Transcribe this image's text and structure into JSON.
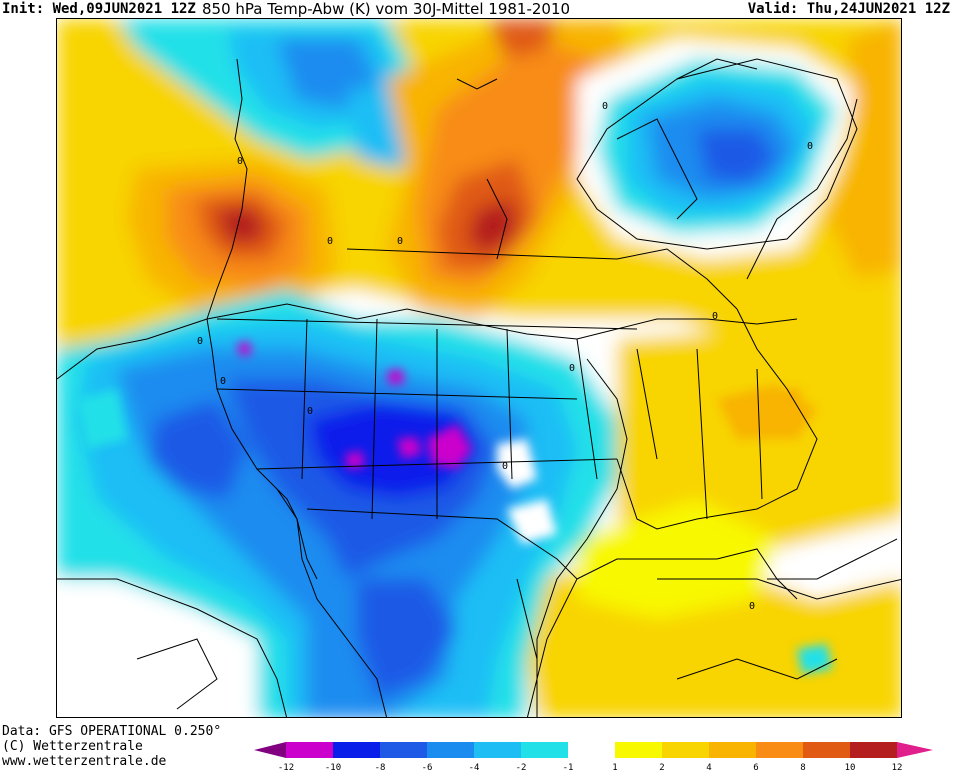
{
  "header": {
    "init": "Init: Wed,09JUN2021 12Z",
    "title": "850 hPa Temp-Abw (K) vom 30J-Mittel 1981-2010",
    "valid": "Valid: Thu,24JUN2021 12Z"
  },
  "footer": {
    "data_source": "Data: GFS OPERATIONAL 0.250°",
    "copyright": "(C) Wetterzentrale",
    "website": "www.wetterzentrale.de"
  },
  "legend": {
    "ticks": [
      "-12",
      "-10",
      "-8",
      "-6",
      "-4",
      "-2",
      "-1",
      "1",
      "2",
      "4",
      "6",
      "8",
      "10",
      "12"
    ],
    "colors": [
      "#cc00cc",
      "#0a1eea",
      "#1e5ae6",
      "#1a8cf0",
      "#1ebef5",
      "#22e0e8",
      "#ffffff",
      "#f8f800",
      "#f8d400",
      "#f8b400",
      "#f88c14",
      "#e05a14",
      "#b41e1e"
    ],
    "low_end_color": "#800080",
    "high_end_color": "#e01e8c"
  },
  "map": {
    "region": "North America",
    "contour_labels": [
      "0",
      "0",
      "0",
      "0",
      "0",
      "0",
      "0",
      "0",
      "0",
      "0",
      "0",
      "0"
    ]
  }
}
